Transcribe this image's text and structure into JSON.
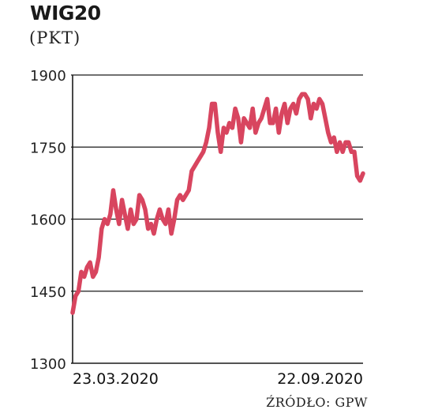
{
  "chart_data": {
    "type": "line",
    "title": "WIG20",
    "subtitle": "(PKT)",
    "source": "ŹRÓDŁO: GPW",
    "xlabel": "",
    "ylabel": "",
    "ylim": [
      1300,
      1900
    ],
    "yticks": [
      1900,
      1750,
      1600,
      1450,
      1300
    ],
    "x_tick_labels": [
      "23.03.2020",
      "22.09.2020"
    ],
    "x_range": [
      "23.03.2020",
      "22.09.2020"
    ],
    "grid": true,
    "line_color": "#d8455f",
    "series": [
      {
        "values": [
          1405,
          1440,
          1450,
          1490,
          1480,
          1500,
          1510,
          1480,
          1490,
          1520,
          1580,
          1600,
          1590,
          1610,
          1660,
          1620,
          1590,
          1640,
          1610,
          1580,
          1620,
          1590,
          1600,
          1650,
          1640,
          1620,
          1580,
          1590,
          1570,
          1600,
          1620,
          1600,
          1590,
          1620,
          1570,
          1600,
          1640,
          1650,
          1640,
          1650,
          1660,
          1700,
          1710,
          1720,
          1730,
          1740,
          1760,
          1790,
          1840,
          1840,
          1780,
          1740,
          1790,
          1780,
          1800,
          1790,
          1830,
          1810,
          1760,
          1810,
          1800,
          1790,
          1830,
          1780,
          1800,
          1810,
          1830,
          1850,
          1800,
          1800,
          1830,
          1780,
          1820,
          1840,
          1800,
          1830,
          1840,
          1820,
          1850,
          1860,
          1860,
          1850,
          1810,
          1840,
          1830,
          1850,
          1840,
          1810,
          1780,
          1760,
          1770,
          1740,
          1760,
          1740,
          1760,
          1760,
          1740,
          1740,
          1690,
          1680,
          1695
        ]
      }
    ]
  }
}
